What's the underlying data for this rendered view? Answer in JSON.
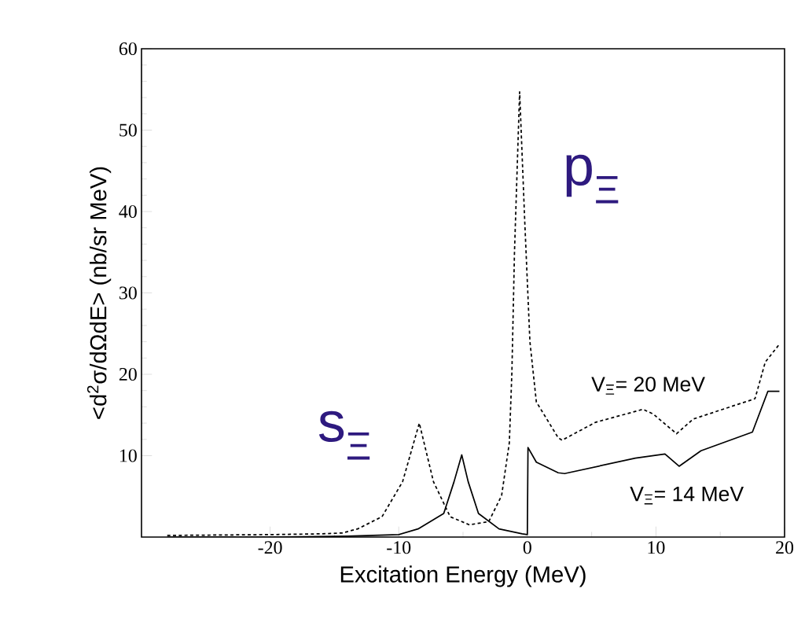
{
  "chart_data": {
    "type": "line",
    "xlabel": "Excitation Energy  (MeV)",
    "ylabel": "<d$^{2}$σ/dΩdE> (nb/sr MeV)",
    "annotations": [
      "s$_{Ξ}$",
      "p$_{Ξ}$"
    ],
    "xlim": [
      -30,
      20
    ],
    "ylim": [
      0,
      60
    ],
    "xticks": [
      -20,
      -10,
      0,
      10,
      20
    ],
    "yticks": [
      10,
      20,
      30,
      40,
      50,
      60
    ],
    "grid": false,
    "legend": false,
    "marker": "none",
    "series": [
      {
        "name": "V$_{Ξ}$= 20 MeV",
        "color": "#000000",
        "line_style": "dashed",
        "x": [
          -28,
          -20,
          -16,
          -14.4,
          -13.2,
          -11.3,
          -9.7,
          -8.4,
          -7.3,
          -6.0,
          -4.5,
          -3.0,
          -2.0,
          -1.4,
          -1.2,
          -1.0,
          -0.6,
          -0.2,
          0.2,
          0.7,
          2.4,
          2.7,
          5.3,
          9.0,
          9.8,
          11.6,
          12.9,
          17.7,
          18.5,
          19.6
        ],
        "values": [
          0.2,
          0.3,
          0.4,
          0.5,
          1.0,
          2.5,
          6.8,
          14.0,
          6.8,
          2.5,
          1.5,
          1.9,
          5.1,
          11.6,
          20.3,
          35,
          54.7,
          38.7,
          24,
          16.6,
          12.2,
          11.9,
          14.1,
          15.7,
          15.1,
          12.7,
          14.5,
          17.0,
          21.5,
          23.7
        ]
      },
      {
        "name": "V$_{Ξ}$= 14 MeV",
        "color": "#000000",
        "line_style": "solid",
        "x": [
          -28,
          -20,
          -14,
          -10,
          -8.5,
          -6.5,
          -5.7,
          -5.1,
          -4.6,
          -3.8,
          -2.2,
          -0.4,
          0.0,
          0.05,
          0.7,
          2.4,
          2.9,
          8.4,
          10.7,
          11.8,
          13.5,
          17.5,
          18.7,
          19.6
        ],
        "values": [
          0,
          0,
          0.1,
          0.3,
          1.0,
          2.9,
          6.8,
          10.1,
          6.8,
          2.9,
          1.0,
          0.4,
          0.3,
          11.0,
          9.2,
          7.9,
          7.8,
          9.7,
          10.2,
          8.7,
          10.6,
          12.9,
          17.9,
          17.9
        ]
      }
    ]
  }
}
